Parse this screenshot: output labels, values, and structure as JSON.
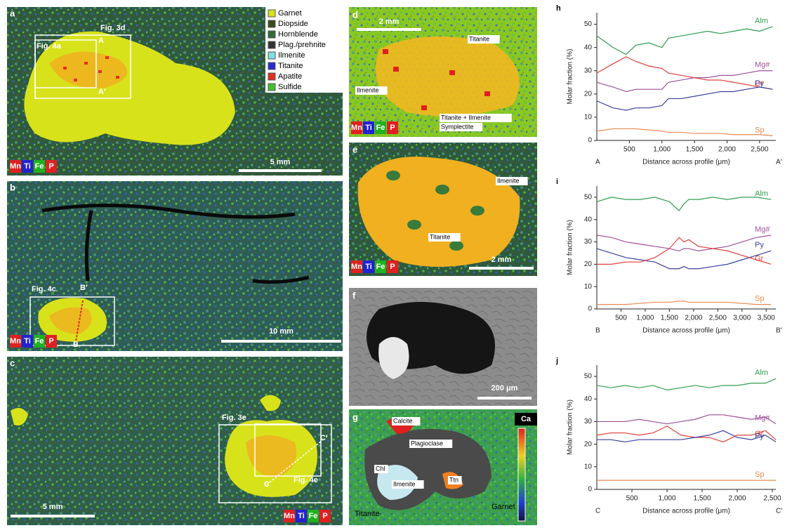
{
  "panels": {
    "a": {
      "letter": "a",
      "legend": [
        {
          "label": "Garnet",
          "color": "#d8e21a"
        },
        {
          "label": "Diopside",
          "color": "#3b4a1c"
        },
        {
          "label": "Hornblende",
          "color": "#2f6a3a"
        },
        {
          "label": "Plag./prehnite",
          "color": "#333333"
        },
        {
          "label": "Ilmenite",
          "color": "#7fe0e0"
        },
        {
          "label": "Titanite",
          "color": "#2a2ad0"
        },
        {
          "label": "Apatite",
          "color": "#e03020"
        },
        {
          "label": "Sulfide",
          "color": "#40c030"
        }
      ],
      "elements": [
        "Mn",
        "Ti",
        "Fe",
        "P"
      ],
      "scale": "5 mm",
      "boxes": [
        "Fig. 3d",
        "Fig. 4a"
      ],
      "profile": [
        "A",
        "A′"
      ]
    },
    "b": {
      "letter": "b",
      "elements": [
        "Mn",
        "Ti",
        "Fe",
        "P"
      ],
      "scale": "10 mm",
      "boxes": [
        "Fig. 4c"
      ],
      "profile": [
        "B′",
        "B"
      ]
    },
    "c": {
      "letter": "c",
      "elements": [
        "Mn",
        "Ti",
        "Fe",
        "P"
      ],
      "scale": "5 mm",
      "boxes": [
        "Fig. 3e",
        "Fig. 4e"
      ],
      "profile": [
        "C",
        "C′"
      ]
    },
    "d": {
      "letter": "d",
      "elements": [
        "Mn",
        "Ti",
        "Fe",
        "P"
      ],
      "scale": "2 mm",
      "labels": [
        "Titanite",
        "Ilmenite",
        "Titanite + Ilmenite",
        "Symplectite"
      ]
    },
    "e": {
      "letter": "e",
      "elements": [
        "Mn",
        "Ti",
        "Fe",
        "P"
      ],
      "scale": "2 mm",
      "labels": [
        "Ilmenite",
        "Titanite"
      ]
    },
    "f": {
      "letter": "f",
      "scale": "200 μm"
    },
    "g": {
      "letter": "g",
      "labels": [
        "Calcite",
        "Plagioclase",
        "Chl",
        "Ilmenite",
        "Ttn",
        "Garnet",
        "Titanite"
      ],
      "map": "Ca"
    }
  },
  "chart_data": [
    {
      "type": "line",
      "panel": "h",
      "y_label": "Molar fraction (%)",
      "x_label": "Distance across profile (μm)",
      "x_endpoints": [
        "A",
        "A′"
      ],
      "xlim": [
        0,
        2750
      ],
      "ylim": [
        0,
        55
      ],
      "yticks": [
        0,
        10,
        20,
        30,
        40,
        50
      ],
      "xticks": [
        500,
        {
          "value": 1000,
          "label": "1,000"
        },
        {
          "value": 1500,
          "label": "1,500"
        },
        {
          "value": 2000,
          "label": "2,000"
        },
        {
          "value": 2500,
          "label": "2,500"
        }
      ],
      "x": [
        0,
        250,
        450,
        600,
        800,
        1000,
        1100,
        1300,
        1500,
        1700,
        1900,
        2100,
        2300,
        2500,
        2700
      ],
      "series": [
        {
          "name": "Alm",
          "color": "#2e9e4f",
          "values": [
            45,
            40,
            37,
            41,
            42,
            40,
            44,
            45,
            46,
            47,
            46,
            47,
            48,
            47,
            49
          ]
        },
        {
          "name": "Mg#",
          "color": "#a0509a",
          "values": [
            25,
            23,
            21,
            22,
            22,
            22,
            25,
            26,
            27,
            27,
            28,
            28,
            29,
            30,
            30
          ]
        },
        {
          "name": "Gr",
          "color": "#e0403a",
          "values": [
            29,
            33,
            36,
            34,
            32,
            31,
            29,
            28,
            27,
            26,
            26,
            25,
            24,
            23,
            22
          ]
        },
        {
          "name": "Py",
          "color": "#3a3f9e",
          "values": [
            17,
            14,
            13,
            14,
            14,
            15,
            18,
            18,
            19,
            20,
            21,
            21,
            22,
            23,
            22
          ]
        },
        {
          "name": "Sp",
          "color": "#e88a50",
          "values": [
            4,
            5,
            5,
            5,
            4.5,
            4,
            3.5,
            3.5,
            3,
            3,
            3,
            2.5,
            2.5,
            2.5,
            2
          ]
        }
      ]
    },
    {
      "type": "line",
      "panel": "i",
      "y_label": "Molar fraction (%)",
      "x_label": "Distance across profile (μm)",
      "x_endpoints": [
        "B",
        "B′"
      ],
      "xlim": [
        0,
        3700
      ],
      "ylim": [
        0,
        55
      ],
      "yticks": [
        0,
        10,
        20,
        30,
        40,
        50
      ],
      "xticks": [
        500,
        {
          "value": 1000,
          "label": "1,000"
        },
        {
          "value": 1500,
          "label": "1,500"
        },
        {
          "value": 2000,
          "label": "2,000"
        },
        {
          "value": 2500,
          "label": "2,500"
        },
        {
          "value": 3000,
          "label": "3,000"
        },
        {
          "value": 3500,
          "label": "3,500"
        }
      ],
      "x": [
        0,
        300,
        600,
        900,
        1200,
        1500,
        1700,
        1800,
        1900,
        2100,
        2400,
        2700,
        3000,
        3300,
        3600
      ],
      "series": [
        {
          "name": "Alm",
          "color": "#2e9e4f",
          "values": [
            48,
            50,
            49,
            49,
            50,
            48,
            44,
            47,
            49,
            49,
            50,
            49,
            50,
            50,
            49
          ]
        },
        {
          "name": "Mg#",
          "color": "#a0509a",
          "values": [
            33,
            32,
            30,
            29,
            28,
            27,
            26,
            27,
            27,
            26,
            27,
            28,
            30,
            32,
            33
          ]
        },
        {
          "name": "Py",
          "color": "#3a3f9e",
          "values": [
            27,
            25,
            23,
            22,
            21,
            18,
            18,
            19,
            18,
            18,
            19,
            20,
            22,
            24,
            26
          ]
        },
        {
          "name": "Gr",
          "color": "#e0403a",
          "values": [
            20,
            20,
            21,
            21,
            23,
            27,
            32,
            30,
            31,
            28,
            27,
            26,
            24,
            22,
            20
          ]
        },
        {
          "name": "Sp",
          "color": "#e88a50",
          "values": [
            2,
            2,
            2,
            2.5,
            3,
            3,
            3.5,
            3.5,
            3,
            3,
            3,
            3,
            2.5,
            2,
            2
          ]
        }
      ]
    },
    {
      "type": "line",
      "panel": "j",
      "y_label": "Molar fraction (%)",
      "x_label": "Distance across profile (μm)",
      "x_endpoints": [
        "C",
        "C′"
      ],
      "xlim": [
        0,
        2550
      ],
      "ylim": [
        0,
        55
      ],
      "yticks": [
        0,
        10,
        20,
        30,
        40,
        50
      ],
      "xticks": [
        500,
        {
          "value": 1000,
          "label": "1,000"
        },
        {
          "value": 1500,
          "label": "1,500"
        },
        {
          "value": 2000,
          "label": "2,000"
        },
        {
          "value": 2500,
          "label": "2,500"
        }
      ],
      "x": [
        0,
        200,
        400,
        600,
        800,
        1000,
        1200,
        1400,
        1600,
        1800,
        2000,
        2200,
        2400,
        2550
      ],
      "series": [
        {
          "name": "Alm",
          "color": "#2e9e4f",
          "values": [
            46,
            45,
            46,
            45,
            46,
            44,
            45,
            46,
            45,
            46,
            46,
            47,
            47,
            49
          ]
        },
        {
          "name": "Mg#",
          "color": "#a0509a",
          "values": [
            30,
            30,
            30,
            31,
            30,
            29,
            30,
            31,
            33,
            33,
            32,
            31,
            32,
            29
          ]
        },
        {
          "name": "Gr",
          "color": "#e0403a",
          "values": [
            24,
            25,
            25,
            24,
            25,
            28,
            24,
            23,
            23,
            21,
            24,
            24,
            26,
            22
          ]
        },
        {
          "name": "Py",
          "color": "#3a3f9e",
          "values": [
            22,
            22,
            21,
            22,
            22,
            22,
            22,
            23,
            24,
            26,
            23,
            22,
            24,
            21
          ]
        },
        {
          "name": "Sp",
          "color": "#e88a50",
          "values": [
            4,
            4,
            4,
            4,
            4,
            4,
            4,
            4,
            4,
            4,
            4,
            4,
            4,
            4
          ]
        }
      ]
    }
  ]
}
